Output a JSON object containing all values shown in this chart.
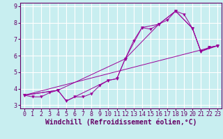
{
  "background_color": "#c8eef0",
  "grid_color": "#ffffff",
  "line_color": "#990099",
  "marker_color": "#990099",
  "xlabel": "Windchill (Refroidissement éolien,°C)",
  "xlim": [
    -0.5,
    23.5
  ],
  "ylim": [
    2.8,
    9.2
  ],
  "xticks": [
    0,
    1,
    2,
    3,
    4,
    5,
    6,
    7,
    8,
    9,
    10,
    11,
    12,
    13,
    14,
    15,
    16,
    17,
    18,
    19,
    20,
    21,
    22,
    23
  ],
  "yticks": [
    3,
    4,
    5,
    6,
    7,
    8,
    9
  ],
  "series": [
    {
      "x": [
        0,
        1,
        2,
        3,
        4,
        5,
        6,
        7,
        8,
        9,
        10,
        11,
        12,
        13,
        14,
        15,
        16,
        17,
        18,
        19,
        20,
        21,
        22,
        23
      ],
      "y": [
        3.6,
        3.5,
        3.5,
        3.75,
        3.9,
        3.25,
        3.5,
        3.5,
        3.7,
        4.2,
        4.5,
        4.6,
        5.8,
        6.9,
        7.7,
        7.6,
        7.9,
        8.15,
        8.7,
        8.5,
        7.65,
        6.25,
        6.5,
        6.6
      ],
      "has_markers": true
    },
    {
      "x": [
        0,
        4,
        5,
        10,
        11,
        12,
        14,
        16,
        18,
        20,
        21,
        22,
        23
      ],
      "y": [
        3.6,
        3.9,
        3.25,
        4.5,
        4.6,
        5.8,
        7.7,
        7.9,
        8.7,
        7.65,
        6.25,
        6.5,
        6.6
      ],
      "has_markers": true
    },
    {
      "x": [
        0,
        4,
        12,
        16,
        18,
        20,
        21,
        23
      ],
      "y": [
        3.6,
        3.9,
        5.8,
        7.9,
        8.7,
        7.65,
        6.25,
        6.6
      ],
      "has_markers": true
    },
    {
      "x": [
        0,
        23
      ],
      "y": [
        3.6,
        6.6
      ],
      "has_markers": false
    }
  ],
  "font_color": "#660066",
  "tick_fontsize": 6,
  "label_fontsize": 7,
  "figsize": [
    3.2,
    2.0
  ],
  "dpi": 100
}
